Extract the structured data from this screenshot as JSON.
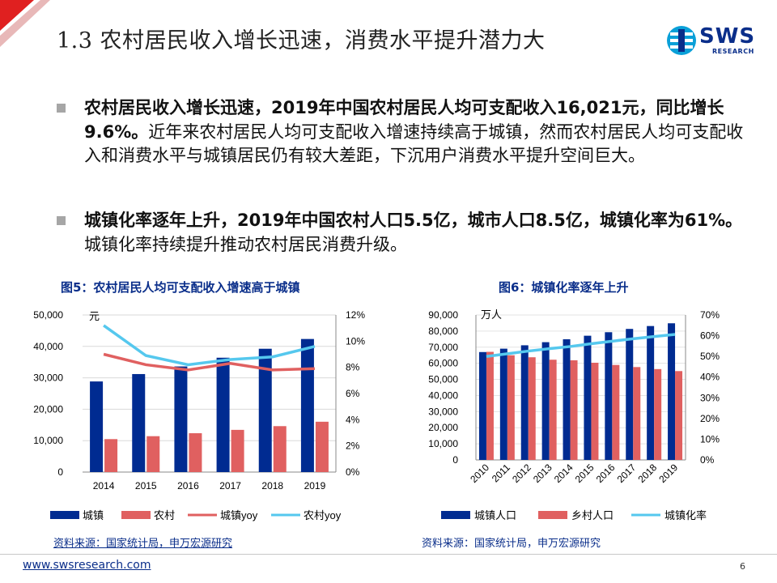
{
  "header": {
    "title": "1.3 农村居民收入增长迅速，消费水平提升潜力大",
    "logo_text": "SWS",
    "logo_sub": "RESEARCH"
  },
  "bullets": [
    {
      "bold": "农村居民收入增长迅速，2019年中国农村居民人均可支配收入16,021元，同比增长9.6%。",
      "text": "近年来农村居民人均可支配收入增速持续高于城镇，然而农村居民人均可支配收入和消费水平与城镇居民仍有较大差距，下沉用户消费水平提升空间巨大。"
    },
    {
      "bold": "城镇化率逐年上升，2019年中国农村人口5.5亿，城市人口8.5亿，城镇化率为61%。",
      "text": "城镇化率持续提升推动农村居民消费升级。"
    }
  ],
  "colors": {
    "dark_blue": "#002b91",
    "red": "#e06060",
    "light_blue": "#55c8ee",
    "accent_red": "#e02020"
  },
  "chart_data": [
    {
      "title": "图5：农村居民人均可支配收入增速高于城镇",
      "type": "bar",
      "categories": [
        "2014",
        "2015",
        "2016",
        "2017",
        "2018",
        "2019"
      ],
      "left_unit": "元",
      "left_ticks": [
        "50,000",
        "40,000",
        "30,000",
        "20,000",
        "10,000",
        "0"
      ],
      "right_ticks": [
        "12%",
        "10%",
        "8%",
        "6%",
        "4%",
        "2%",
        "0%"
      ],
      "ylim": [
        0,
        50000
      ],
      "y2lim": [
        0,
        12
      ],
      "series": [
        {
          "name": "城镇",
          "kind": "bar",
          "values": [
            28844,
            31195,
            33616,
            36396,
            39251,
            42359
          ]
        },
        {
          "name": "农村",
          "kind": "bar",
          "values": [
            10489,
            11422,
            12363,
            13432,
            14617,
            16021
          ]
        },
        {
          "name": "城镇yoy",
          "kind": "line",
          "axis": "right",
          "values": [
            9.0,
            8.2,
            7.8,
            8.3,
            7.8,
            7.9
          ]
        },
        {
          "name": "农村yoy",
          "kind": "line",
          "axis": "right",
          "values": [
            11.2,
            8.9,
            8.2,
            8.6,
            8.8,
            9.6
          ]
        }
      ],
      "legend_position": "bottom",
      "source": "资料来源：国家统计局，申万宏源研究"
    },
    {
      "title": "图6：城镇化率逐年上升",
      "type": "bar",
      "categories": [
        "2010",
        "2011",
        "2012",
        "2013",
        "2014",
        "2015",
        "2016",
        "2017",
        "2018",
        "2019"
      ],
      "left_unit": "万人",
      "left_ticks": [
        "90,000",
        "80,000",
        "70,000",
        "60,000",
        "50,000",
        "40,000",
        "30,000",
        "20,000",
        "10,000",
        "0"
      ],
      "right_ticks": [
        "70%",
        "60%",
        "50%",
        "40%",
        "30%",
        "20%",
        "10%",
        "0%"
      ],
      "ylim": [
        0,
        90000
      ],
      "y2lim": [
        0,
        70
      ],
      "series": [
        {
          "name": "城镇人口",
          "kind": "bar",
          "values": [
            66978,
            69079,
            71182,
            73111,
            74916,
            77116,
            79298,
            81347,
            83137,
            84843
          ]
        },
        {
          "name": "乡村人口",
          "kind": "bar",
          "values": [
            67113,
            64989,
            63747,
            62224,
            61866,
            60346,
            58973,
            57661,
            56401,
            55162
          ]
        },
        {
          "name": "城镇化率",
          "kind": "line",
          "axis": "right",
          "values": [
            49.95,
            51.27,
            52.57,
            53.73,
            54.77,
            56.1,
            57.35,
            58.52,
            59.58,
            60.6
          ]
        }
      ],
      "legend_position": "bottom",
      "source": "资料来源：国家统计局，申万宏源研究"
    }
  ],
  "footer": {
    "url": "www.swsresearch.com",
    "page": "6"
  }
}
